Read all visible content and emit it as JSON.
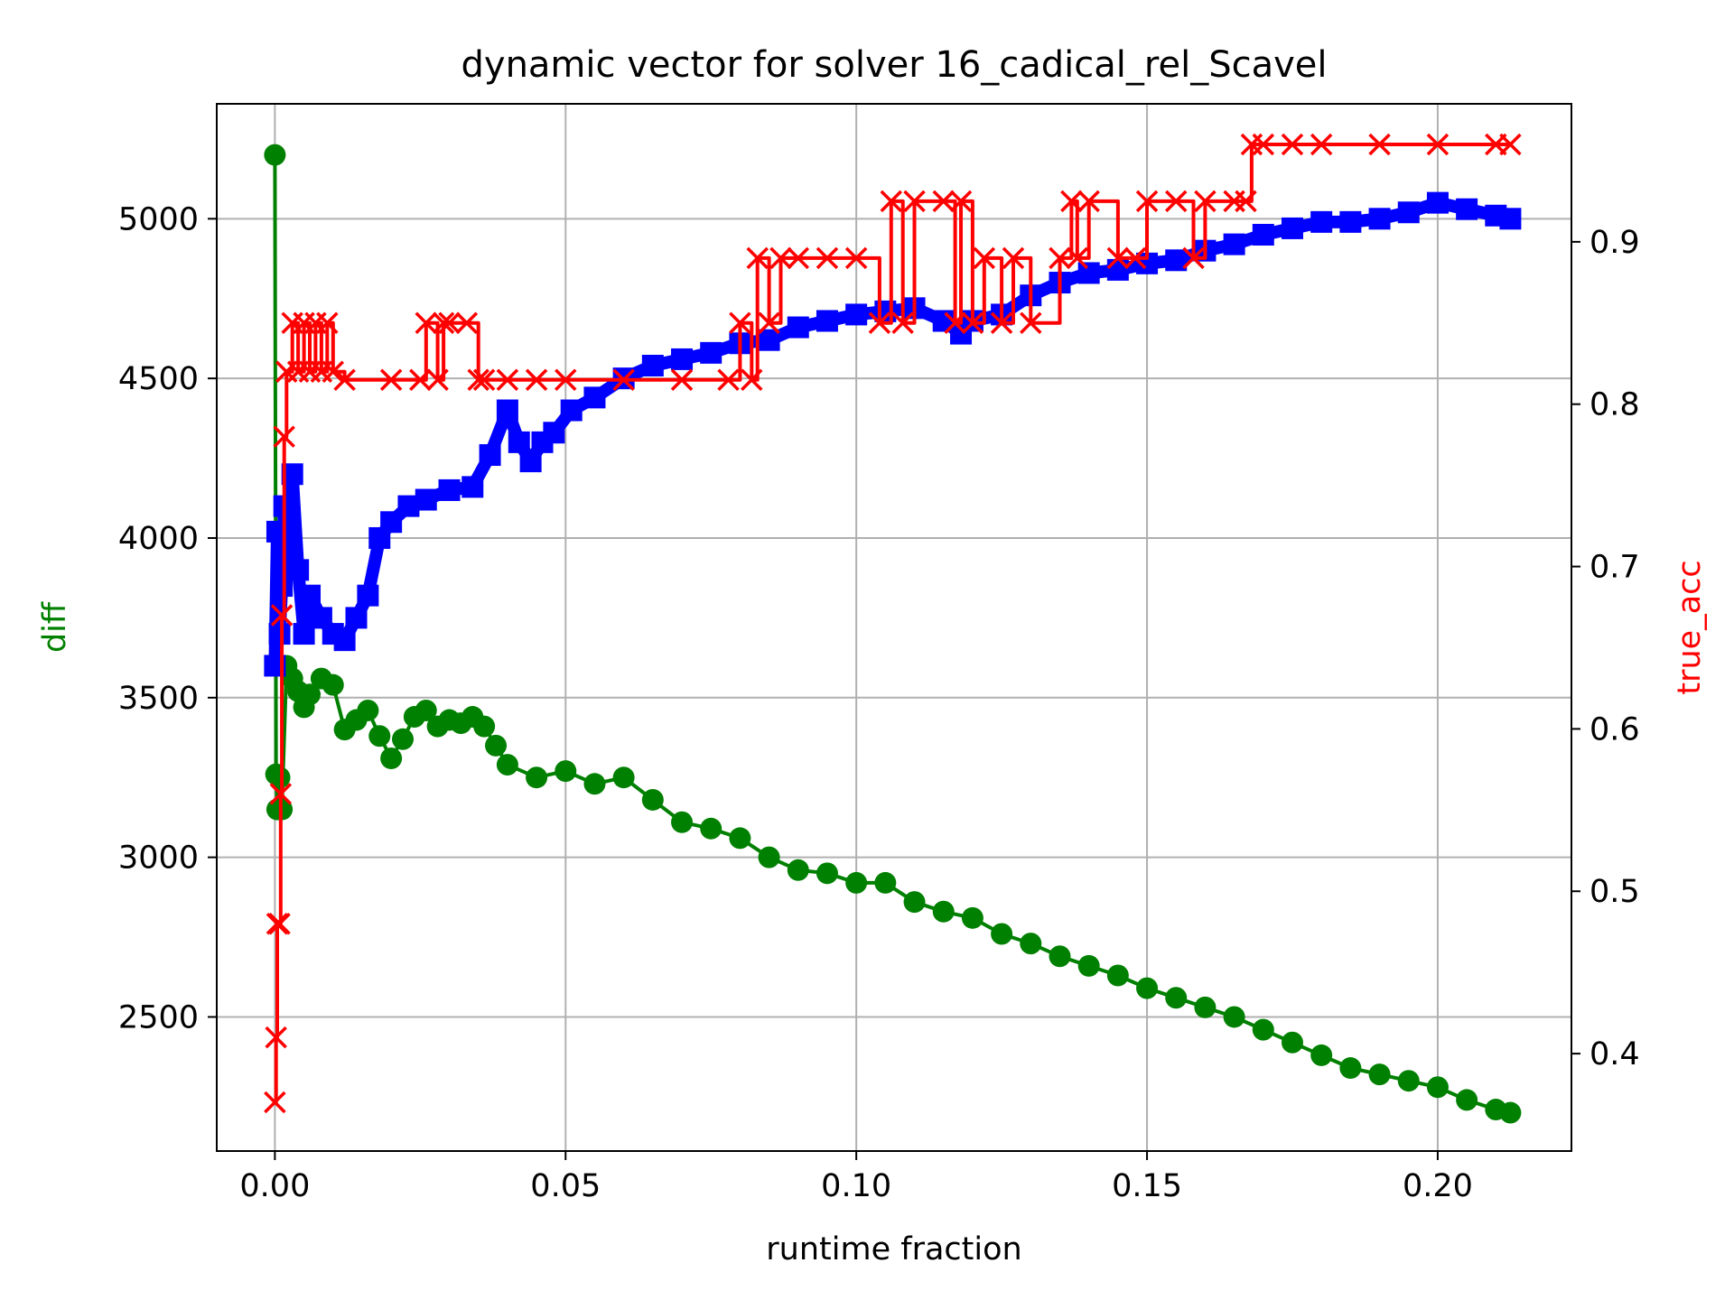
{
  "chart_data": {
    "type": "line",
    "title": "dynamic vector for solver 16_cadical_rel_Scavel",
    "xlabel": "runtime fraction",
    "ylabel": "diff",
    "ylabel_right": "true_acc",
    "xlim": [
      -0.01,
      0.223
    ],
    "ylim": [
      2080,
      5360
    ],
    "ylim_right": [
      0.34,
      0.985
    ],
    "grid": true,
    "x_ticks": [
      0.0,
      0.05,
      0.1,
      0.15,
      0.2
    ],
    "x_tick_labels": [
      "0.00",
      "0.05",
      "0.10",
      "0.15",
      "0.20"
    ],
    "y_ticks": [
      2500,
      3000,
      3500,
      4000,
      4500,
      5000
    ],
    "y_tick_labels": [
      "2500",
      "3000",
      "3500",
      "4000",
      "4500",
      "5000"
    ],
    "y_right_ticks": [
      0.4,
      0.5,
      0.6,
      0.7,
      0.8,
      0.9
    ],
    "y_right_tick_labels": [
      "0.4",
      "0.5",
      "0.6",
      "0.7",
      "0.8",
      "0.9"
    ],
    "colors": {
      "diff": "#008000",
      "blue": "#0000ff",
      "true_acc": "#ff0000",
      "grid": "#b0b0b0"
    },
    "series": [
      {
        "axis": "left",
        "color": "#008000",
        "marker": "circle",
        "x": [
          0.0,
          0.0002,
          0.0004,
          0.0008,
          0.0012,
          0.002,
          0.003,
          0.004,
          0.005,
          0.006,
          0.008,
          0.01,
          0.012,
          0.014,
          0.016,
          0.018,
          0.02,
          0.022,
          0.024,
          0.026,
          0.028,
          0.03,
          0.032,
          0.034,
          0.036,
          0.038,
          0.04,
          0.045,
          0.05,
          0.055,
          0.06,
          0.065,
          0.07,
          0.075,
          0.08,
          0.085,
          0.09,
          0.095,
          0.1,
          0.105,
          0.11,
          0.115,
          0.12,
          0.125,
          0.13,
          0.135,
          0.14,
          0.145,
          0.15,
          0.155,
          0.16,
          0.165,
          0.17,
          0.175,
          0.18,
          0.185,
          0.19,
          0.195,
          0.2,
          0.205,
          0.21,
          0.2125
        ],
        "y": [
          5200,
          3260,
          3150,
          3250,
          3150,
          3600,
          3560,
          3520,
          3470,
          3510,
          3560,
          3540,
          3400,
          3430,
          3460,
          3380,
          3310,
          3370,
          3440,
          3460,
          3410,
          3430,
          3420,
          3440,
          3410,
          3350,
          3290,
          3250,
          3270,
          3230,
          3250,
          3180,
          3110,
          3090,
          3060,
          3000,
          2960,
          2950,
          2920,
          2920,
          2860,
          2830,
          2810,
          2760,
          2730,
          2690,
          2660,
          2630,
          2590,
          2560,
          2530,
          2500,
          2460,
          2420,
          2380,
          2340,
          2320,
          2300,
          2280,
          2240,
          2210,
          2200
        ]
      },
      {
        "axis": "left",
        "color": "#0000ff",
        "marker": "square",
        "x": [
          0.0,
          0.0004,
          0.0008,
          0.0012,
          0.0016,
          0.002,
          0.003,
          0.004,
          0.005,
          0.006,
          0.008,
          0.01,
          0.012,
          0.014,
          0.016,
          0.018,
          0.02,
          0.023,
          0.026,
          0.03,
          0.034,
          0.037,
          0.04,
          0.042,
          0.044,
          0.046,
          0.048,
          0.051,
          0.055,
          0.06,
          0.065,
          0.07,
          0.075,
          0.08,
          0.085,
          0.09,
          0.095,
          0.1,
          0.105,
          0.11,
          0.115,
          0.118,
          0.12,
          0.125,
          0.13,
          0.135,
          0.14,
          0.145,
          0.15,
          0.155,
          0.16,
          0.165,
          0.17,
          0.175,
          0.18,
          0.185,
          0.19,
          0.195,
          0.2,
          0.205,
          0.21,
          0.2125
        ],
        "y": [
          3600,
          4020,
          3700,
          3850,
          4100,
          3950,
          4200,
          3900,
          3700,
          3820,
          3750,
          3700,
          3680,
          3750,
          3820,
          4000,
          4050,
          4100,
          4120,
          4150,
          4160,
          4260,
          4400,
          4300,
          4240,
          4300,
          4330,
          4400,
          4440,
          4500,
          4540,
          4560,
          4580,
          4610,
          4620,
          4660,
          4680,
          4700,
          4710,
          4720,
          4680,
          4640,
          4680,
          4700,
          4760,
          4800,
          4830,
          4840,
          4860,
          4870,
          4900,
          4920,
          4950,
          4970,
          4990,
          4990,
          5000,
          5020,
          5050,
          5030,
          5010,
          5000
        ]
      },
      {
        "axis": "right",
        "color": "#ff0000",
        "marker": "x",
        "step": true,
        "x": [
          0.0,
          0.0002,
          0.0004,
          0.0008,
          0.001,
          0.0012,
          0.0016,
          0.002,
          0.003,
          0.004,
          0.005,
          0.006,
          0.007,
          0.008,
          0.009,
          0.01,
          0.012,
          0.02,
          0.025,
          0.026,
          0.028,
          0.029,
          0.03,
          0.033,
          0.035,
          0.036,
          0.04,
          0.045,
          0.05,
          0.06,
          0.07,
          0.078,
          0.08,
          0.082,
          0.083,
          0.085,
          0.087,
          0.09,
          0.095,
          0.1,
          0.104,
          0.106,
          0.108,
          0.11,
          0.115,
          0.117,
          0.118,
          0.12,
          0.122,
          0.125,
          0.127,
          0.13,
          0.135,
          0.137,
          0.138,
          0.14,
          0.145,
          0.148,
          0.15,
          0.155,
          0.158,
          0.16,
          0.165,
          0.167,
          0.168,
          0.17,
          0.175,
          0.18,
          0.19,
          0.2,
          0.21,
          0.2125
        ],
        "y": [
          0.37,
          0.41,
          0.48,
          0.48,
          0.56,
          0.67,
          0.78,
          0.82,
          0.85,
          0.82,
          0.85,
          0.82,
          0.85,
          0.82,
          0.85,
          0.82,
          0.815,
          0.815,
          0.815,
          0.85,
          0.815,
          0.85,
          0.85,
          0.85,
          0.815,
          0.815,
          0.815,
          0.815,
          0.815,
          0.815,
          0.815,
          0.815,
          0.85,
          0.815,
          0.89,
          0.85,
          0.89,
          0.89,
          0.89,
          0.89,
          0.85,
          0.925,
          0.85,
          0.925,
          0.925,
          0.85,
          0.925,
          0.85,
          0.89,
          0.85,
          0.89,
          0.85,
          0.89,
          0.925,
          0.89,
          0.925,
          0.89,
          0.89,
          0.925,
          0.925,
          0.89,
          0.925,
          0.925,
          0.925,
          0.96,
          0.96,
          0.96,
          0.96,
          0.96,
          0.96,
          0.96,
          0.96
        ]
      }
    ]
  }
}
